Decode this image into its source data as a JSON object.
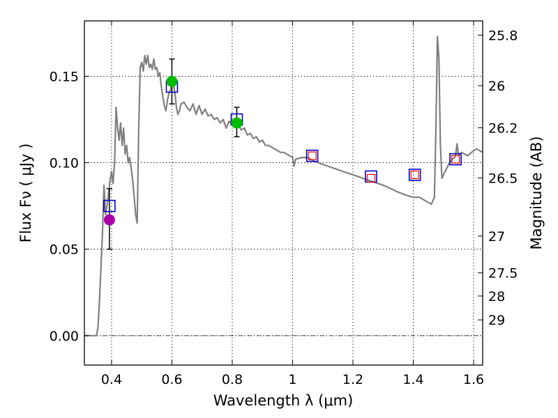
{
  "chart_data": {
    "type": "scatter",
    "xlabel": "Wavelength  λ (μm)",
    "ylabel": "Flux  Fν  ( μJy )",
    "y2label": "Magnitude (AB)",
    "xlim": [
      0.31,
      1.63
    ],
    "ylim": [
      -0.017,
      0.182
    ],
    "x_ticks": [
      0.4,
      0.6,
      0.8,
      1.0,
      1.2,
      1.4,
      1.6
    ],
    "x_tick_labels": [
      "0.4",
      "0.6",
      "0.8",
      "1",
      "1.2",
      "1.4",
      "1.6"
    ],
    "y_ticks": [
      0.0,
      0.05,
      0.1,
      0.15
    ],
    "y_tick_labels": [
      "0.00",
      "0.05",
      "0.10",
      "0.15"
    ],
    "y2_ticks": [
      25.8,
      26.0,
      26.2,
      26.5,
      27.0,
      27.5,
      28.0,
      29.0
    ],
    "y2_tick_labels": [
      "25.8",
      "26",
      "26.2",
      "26.5",
      "27",
      "27.5",
      "28",
      "29"
    ],
    "grid": true,
    "colors": {
      "model": "#808080",
      "blue_box": "#0000cc",
      "red_box": "#ff0000",
      "green_point": "#00bb00",
      "magenta_point": "#aa00aa",
      "errorbar": "#000000"
    },
    "series": [
      {
        "name": "model SED",
        "kind": "line",
        "points": [
          [
            0.31,
            0.0
          ],
          [
            0.35,
            0.0
          ],
          [
            0.355,
            0.005
          ],
          [
            0.36,
            0.02
          ],
          [
            0.365,
            0.04
          ],
          [
            0.37,
            0.06
          ],
          [
            0.375,
            0.087
          ],
          [
            0.38,
            0.07
          ],
          [
            0.385,
            0.075
          ],
          [
            0.39,
            0.082
          ],
          [
            0.395,
            0.09
          ],
          [
            0.4,
            0.095
          ],
          [
            0.405,
            0.088
          ],
          [
            0.41,
            0.1
          ],
          [
            0.415,
            0.132
          ],
          [
            0.42,
            0.12
          ],
          [
            0.425,
            0.113
          ],
          [
            0.43,
            0.123
          ],
          [
            0.435,
            0.11
          ],
          [
            0.44,
            0.12
          ],
          [
            0.445,
            0.105
          ],
          [
            0.45,
            0.11
          ],
          [
            0.455,
            0.1
          ],
          [
            0.46,
            0.103
          ],
          [
            0.465,
            0.097
          ],
          [
            0.47,
            0.09
          ],
          [
            0.475,
            0.08
          ],
          [
            0.48,
            0.07
          ],
          [
            0.485,
            0.065
          ],
          [
            0.49,
            0.12
          ],
          [
            0.495,
            0.155
          ],
          [
            0.5,
            0.158
          ],
          [
            0.505,
            0.153
          ],
          [
            0.51,
            0.162
          ],
          [
            0.515,
            0.157
          ],
          [
            0.52,
            0.162
          ],
          [
            0.525,
            0.155
          ],
          [
            0.53,
            0.157
          ],
          [
            0.535,
            0.154
          ],
          [
            0.54,
            0.16
          ],
          [
            0.545,
            0.154
          ],
          [
            0.55,
            0.155
          ],
          [
            0.555,
            0.15
          ],
          [
            0.56,
            0.152
          ],
          [
            0.565,
            0.144
          ],
          [
            0.57,
            0.138
          ],
          [
            0.575,
            0.133
          ],
          [
            0.58,
            0.13
          ],
          [
            0.585,
            0.136
          ],
          [
            0.59,
            0.14
          ],
          [
            0.595,
            0.142
          ],
          [
            0.6,
            0.146
          ],
          [
            0.605,
            0.145
          ],
          [
            0.61,
            0.14
          ],
          [
            0.615,
            0.132
          ],
          [
            0.62,
            0.128
          ],
          [
            0.625,
            0.13
          ],
          [
            0.63,
            0.134
          ],
          [
            0.64,
            0.135
          ],
          [
            0.65,
            0.132
          ],
          [
            0.66,
            0.13
          ],
          [
            0.67,
            0.134
          ],
          [
            0.68,
            0.128
          ],
          [
            0.69,
            0.133
          ],
          [
            0.7,
            0.128
          ],
          [
            0.71,
            0.131
          ],
          [
            0.72,
            0.127
          ],
          [
            0.73,
            0.128
          ],
          [
            0.74,
            0.125
          ],
          [
            0.75,
            0.126
          ],
          [
            0.76,
            0.123
          ],
          [
            0.77,
            0.125
          ],
          [
            0.78,
            0.12
          ],
          [
            0.79,
            0.124
          ],
          [
            0.8,
            0.122
          ],
          [
            0.81,
            0.125
          ],
          [
            0.82,
            0.122
          ],
          [
            0.83,
            0.119
          ],
          [
            0.84,
            0.12
          ],
          [
            0.85,
            0.116
          ],
          [
            0.86,
            0.117
          ],
          [
            0.87,
            0.114
          ],
          [
            0.88,
            0.115
          ],
          [
            0.89,
            0.112
          ],
          [
            0.9,
            0.113
          ],
          [
            0.91,
            0.11
          ],
          [
            0.92,
            0.11
          ],
          [
            0.93,
            0.109
          ],
          [
            0.94,
            0.108
          ],
          [
            0.95,
            0.107
          ],
          [
            0.96,
            0.106
          ],
          [
            0.97,
            0.106
          ],
          [
            0.98,
            0.105
          ],
          [
            0.99,
            0.104
          ],
          [
            1.0,
            0.103
          ],
          [
            1.005,
            0.098
          ],
          [
            1.01,
            0.102
          ],
          [
            1.03,
            0.103
          ],
          [
            1.05,
            0.103
          ],
          [
            1.07,
            0.101
          ],
          [
            1.1,
            0.099
          ],
          [
            1.15,
            0.096
          ],
          [
            1.2,
            0.093
          ],
          [
            1.25,
            0.09
          ],
          [
            1.3,
            0.087
          ],
          [
            1.35,
            0.083
          ],
          [
            1.38,
            0.081
          ],
          [
            1.4,
            0.08
          ],
          [
            1.42,
            0.08
          ],
          [
            1.44,
            0.078
          ],
          [
            1.46,
            0.076
          ],
          [
            1.47,
            0.08
          ],
          [
            1.475,
            0.12
          ],
          [
            1.48,
            0.173
          ],
          [
            1.485,
            0.16
          ],
          [
            1.49,
            0.11
          ],
          [
            1.495,
            0.091
          ],
          [
            1.5,
            0.093
          ],
          [
            1.52,
            0.1
          ],
          [
            1.54,
            0.104
          ],
          [
            1.545,
            0.111
          ],
          [
            1.55,
            0.104
          ],
          [
            1.56,
            0.106
          ],
          [
            1.58,
            0.104
          ],
          [
            1.6,
            0.107
          ],
          [
            1.61,
            0.108
          ],
          [
            1.62,
            0.107
          ],
          [
            1.63,
            0.106
          ]
        ]
      },
      {
        "name": "blue boxes",
        "kind": "open_square",
        "points": [
          [
            0.393,
            0.075
          ],
          [
            0.6,
            0.144
          ],
          [
            0.815,
            0.125
          ],
          [
            1.065,
            0.104
          ],
          [
            1.26,
            0.092
          ],
          [
            1.405,
            0.093
          ],
          [
            1.54,
            0.102
          ]
        ]
      },
      {
        "name": "red boxes",
        "kind": "open_square_small",
        "points": [
          [
            1.065,
            0.104
          ],
          [
            1.26,
            0.091
          ],
          [
            1.405,
            0.093
          ],
          [
            1.54,
            0.102
          ]
        ]
      },
      {
        "name": "green points",
        "kind": "filled_circle",
        "points": [
          [
            0.6,
            0.147
          ],
          [
            0.815,
            0.123
          ]
        ]
      },
      {
        "name": "magenta points",
        "kind": "filled_circle",
        "points": [
          [
            0.393,
            0.067
          ]
        ]
      },
      {
        "name": "error bars",
        "kind": "errorbar",
        "bars": [
          [
            0.393,
            0.05,
            0.085
          ],
          [
            0.6,
            0.134,
            0.16
          ],
          [
            0.815,
            0.115,
            0.132
          ]
        ]
      }
    ]
  }
}
